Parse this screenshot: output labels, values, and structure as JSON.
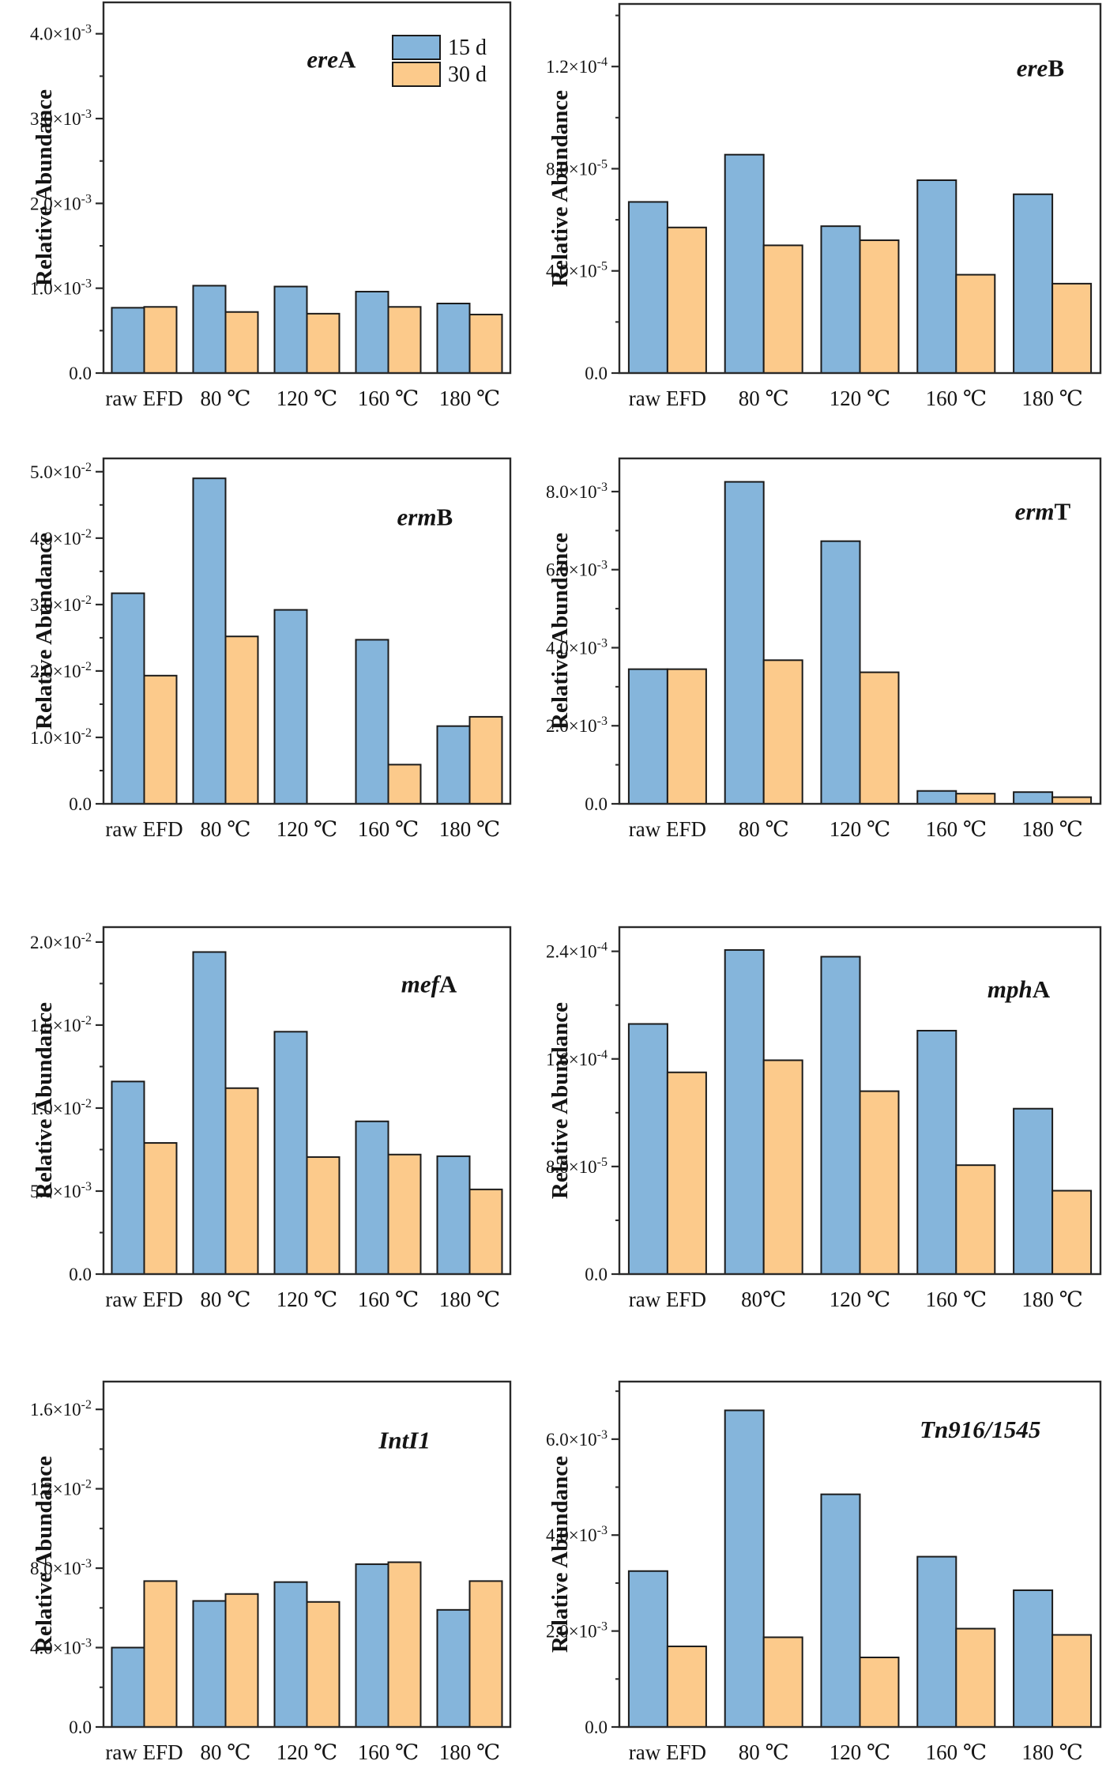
{
  "figure": {
    "ylabel": "Relative Abundance",
    "legend": {
      "position": "top-right-inside-first-chart",
      "items": [
        {
          "key": "d15",
          "label": "15 d"
        },
        {
          "key": "d30",
          "label": "30 d"
        }
      ]
    },
    "colors": {
      "d15": "#85b5db",
      "d30": "#fcca8b",
      "bar_border": "#1b1b1b",
      "axis": "#2a2a2a",
      "text": "#141414",
      "background": "#ffffff"
    }
  },
  "chart_data": [
    {
      "id": "ereA",
      "type": "bar",
      "title_parts": [
        {
          "text": "ere",
          "style": "italic"
        },
        {
          "text": "A",
          "style": "upright"
        }
      ],
      "ylabel": "Relative Abundance",
      "categories": [
        "raw EFD",
        "80 ℃",
        "120 ℃",
        "160 ℃",
        "180 ℃"
      ],
      "series": [
        {
          "name": "15 d",
          "key": "d15",
          "values": [
            0.00077,
            0.00103,
            0.00102,
            0.00096,
            0.00082
          ]
        },
        {
          "name": "30 d",
          "key": "d30",
          "values": [
            0.00078,
            0.00072,
            0.0007,
            0.00078,
            0.00069
          ]
        }
      ],
      "ylim": [
        0,
        0.00437
      ],
      "yticks": [
        {
          "v": 0,
          "label": "0.0"
        },
        {
          "v": 0.001,
          "label": "1.0×10^-3"
        },
        {
          "v": 0.002,
          "label": "2.0×10^-3"
        },
        {
          "v": 0.003,
          "label": "3.0×10^-3"
        },
        {
          "v": 0.004,
          "label": "4.0×10^-3"
        }
      ],
      "minor_yticks": [
        0.0005,
        0.0015,
        0.0025,
        0.0035
      ],
      "grid": false,
      "legend": true
    },
    {
      "id": "ereB",
      "type": "bar",
      "title_parts": [
        {
          "text": "ere",
          "style": "italic"
        },
        {
          "text": "B",
          "style": "upright"
        }
      ],
      "ylabel": "Relative Abundance",
      "categories": [
        "raw EFD",
        "80 ℃",
        "120 ℃",
        "160 ℃",
        "180 ℃"
      ],
      "series": [
        {
          "name": "15 d",
          "key": "d15",
          "values": [
            6.7e-05,
            8.55e-05,
            5.75e-05,
            7.55e-05,
            7e-05
          ]
        },
        {
          "name": "30 d",
          "key": "d30",
          "values": [
            5.7e-05,
            5e-05,
            5.2e-05,
            3.85e-05,
            3.5e-05
          ]
        }
      ],
      "ylim": [
        0,
        0.0001445
      ],
      "yticks": [
        {
          "v": 0,
          "label": "0.0"
        },
        {
          "v": 4e-05,
          "label": "4.0×10^-5"
        },
        {
          "v": 8e-05,
          "label": "8.0×10^-5"
        },
        {
          "v": 0.00012,
          "label": "1.2×10^-4"
        }
      ],
      "minor_yticks": [
        2e-05,
        6e-05,
        0.0001,
        0.00014
      ],
      "grid": false,
      "legend": false
    },
    {
      "id": "ermB",
      "type": "bar",
      "title_parts": [
        {
          "text": "erm",
          "style": "italic"
        },
        {
          "text": "B",
          "style": "upright"
        }
      ],
      "ylabel": "Relative Abundance",
      "categories": [
        "raw EFD",
        "80 ℃",
        "120 ℃",
        "160 ℃",
        "180 ℃"
      ],
      "series": [
        {
          "name": "15 d",
          "key": "d15",
          "values": [
            0.0317,
            0.049,
            0.0292,
            0.0247,
            0.0117
          ]
        },
        {
          "name": "30 d",
          "key": "d30",
          "values": [
            0.0193,
            0.0252,
            0,
            0.0059,
            0.0131
          ]
        }
      ],
      "ylim": [
        0,
        0.052
      ],
      "yticks": [
        {
          "v": 0,
          "label": "0.0"
        },
        {
          "v": 0.01,
          "label": "1.0×10^-2"
        },
        {
          "v": 0.02,
          "label": "2.0×10^-2"
        },
        {
          "v": 0.03,
          "label": "3.0×10^-2"
        },
        {
          "v": 0.04,
          "label": "4.0×10^-2"
        },
        {
          "v": 0.05,
          "label": "5.0×10^-2"
        }
      ],
      "minor_yticks": [
        0.005,
        0.015,
        0.025,
        0.035,
        0.045
      ],
      "grid": false,
      "legend": false
    },
    {
      "id": "ermT",
      "type": "bar",
      "title_parts": [
        {
          "text": "erm",
          "style": "italic"
        },
        {
          "text": "T",
          "style": "upright"
        }
      ],
      "ylabel": "Relative Abundance",
      "categories": [
        "raw EFD",
        "80 ℃",
        "120 ℃",
        "160 ℃",
        "180 ℃"
      ],
      "series": [
        {
          "name": "15 d",
          "key": "d15",
          "values": [
            0.00345,
            0.00825,
            0.00673,
            0.00033,
            0.0003
          ]
        },
        {
          "name": "30 d",
          "key": "d30",
          "values": [
            0.00345,
            0.00368,
            0.00337,
            0.00026,
            0.00017
          ]
        }
      ],
      "ylim": [
        0,
        0.00885
      ],
      "yticks": [
        {
          "v": 0,
          "label": "0.0"
        },
        {
          "v": 0.002,
          "label": "2.0×10^-3"
        },
        {
          "v": 0.004,
          "label": "4.0×10^-3"
        },
        {
          "v": 0.006,
          "label": "6.0×10^-3"
        },
        {
          "v": 0.008,
          "label": "8.0×10^-3"
        }
      ],
      "minor_yticks": [
        0.001,
        0.003,
        0.005,
        0.007
      ],
      "grid": false,
      "legend": false
    },
    {
      "id": "mefA",
      "type": "bar",
      "title_parts": [
        {
          "text": "mef",
          "style": "italic"
        },
        {
          "text": "A",
          "style": "upright"
        }
      ],
      "ylabel": "Relative Abundance",
      "categories": [
        "raw EFD",
        "80 ℃",
        "120 ℃",
        "160 ℃",
        "180 ℃"
      ],
      "series": [
        {
          "name": "15 d",
          "key": "d15",
          "values": [
            0.0116,
            0.0194,
            0.0146,
            0.0092,
            0.0071
          ]
        },
        {
          "name": "30 d",
          "key": "d30",
          "values": [
            0.0079,
            0.0112,
            0.00705,
            0.0072,
            0.0051
          ]
        }
      ],
      "ylim": [
        0,
        0.0209
      ],
      "yticks": [
        {
          "v": 0,
          "label": "0.0"
        },
        {
          "v": 0.005,
          "label": "5.0×10^-3"
        },
        {
          "v": 0.01,
          "label": "1.0×10^-2"
        },
        {
          "v": 0.015,
          "label": "1.5×10^-2"
        },
        {
          "v": 0.02,
          "label": "2.0×10^-2"
        }
      ],
      "minor_yticks": [
        0.0025,
        0.0075,
        0.0125,
        0.0175
      ],
      "grid": false,
      "legend": false
    },
    {
      "id": "mphA",
      "type": "bar",
      "title_parts": [
        {
          "text": "mph",
          "style": "italic"
        },
        {
          "text": "A",
          "style": "upright"
        }
      ],
      "ylabel": "Relative Abundance",
      "categories": [
        "raw EFD",
        "80℃",
        "120 ℃",
        "160 ℃",
        "180 ℃"
      ],
      "series": [
        {
          "name": "15 d",
          "key": "d15",
          "values": [
            0.000186,
            0.000241,
            0.000236,
            0.000181,
            0.000123
          ]
        },
        {
          "name": "30 d",
          "key": "d30",
          "values": [
            0.00015,
            0.000159,
            0.000136,
            8.1e-05,
            6.2e-05
          ]
        }
      ],
      "ylim": [
        0,
        0.000258
      ],
      "yticks": [
        {
          "v": 0,
          "label": "0.0"
        },
        {
          "v": 8e-05,
          "label": "8.0×10^-5"
        },
        {
          "v": 0.00016,
          "label": "1.6×10^-4"
        },
        {
          "v": 0.00024,
          "label": "2.4×10^-4"
        }
      ],
      "minor_yticks": [
        4e-05,
        0.00012,
        0.0002
      ],
      "grid": false,
      "legend": false
    },
    {
      "id": "IntI1",
      "type": "bar",
      "title_parts": [
        {
          "text": "IntI1",
          "style": "italic"
        }
      ],
      "ylabel": "Relative Abundance",
      "categories": [
        "raw EFD",
        "80 ℃",
        "120 ℃",
        "160 ℃",
        "180 ℃"
      ],
      "series": [
        {
          "name": "15 d",
          "key": "d15",
          "values": [
            0.004,
            0.00635,
            0.0073,
            0.0082,
            0.0059
          ]
        },
        {
          "name": "30 d",
          "key": "d30",
          "values": [
            0.00735,
            0.0067,
            0.0063,
            0.0083,
            0.00735
          ]
        }
      ],
      "ylim": [
        0,
        0.0174
      ],
      "yticks": [
        {
          "v": 0,
          "label": "0.0"
        },
        {
          "v": 0.004,
          "label": "4.0×10^-3"
        },
        {
          "v": 0.008,
          "label": "8.0×10^-3"
        },
        {
          "v": 0.012,
          "label": "1.2×10^-2"
        },
        {
          "v": 0.016,
          "label": "1.6×10^-2"
        }
      ],
      "minor_yticks": [
        0.002,
        0.006,
        0.01,
        0.014
      ],
      "grid": false,
      "legend": false
    },
    {
      "id": "Tn916/1545",
      "type": "bar",
      "title_parts": [
        {
          "text": "Tn916/1545",
          "style": "italic"
        }
      ],
      "ylabel": "Relative Abundance",
      "categories": [
        "raw EFD",
        "80 ℃",
        "120 ℃",
        "160 ℃",
        "180 ℃"
      ],
      "series": [
        {
          "name": "15 d",
          "key": "d15",
          "values": [
            0.00325,
            0.0066,
            0.00485,
            0.00355,
            0.00285
          ]
        },
        {
          "name": "30 d",
          "key": "d30",
          "values": [
            0.00168,
            0.00187,
            0.00145,
            0.00205,
            0.00192
          ]
        }
      ],
      "ylim": [
        0,
        0.0072
      ],
      "yticks": [
        {
          "v": 0,
          "label": "0.0"
        },
        {
          "v": 0.002,
          "label": "2.0×10^-3"
        },
        {
          "v": 0.004,
          "label": "4.0×10^-3"
        },
        {
          "v": 0.006,
          "label": "6.0×10^-3"
        }
      ],
      "minor_yticks": [
        0.001,
        0.003,
        0.005,
        0.007
      ],
      "grid": false,
      "legend": false
    }
  ]
}
